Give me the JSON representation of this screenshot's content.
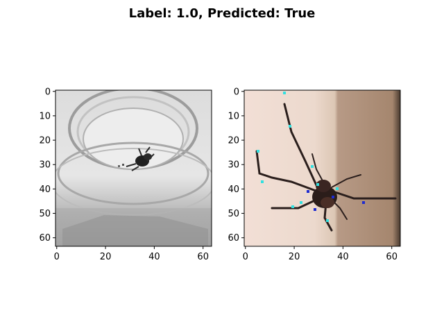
{
  "figure": {
    "title": "Label: 1.0, Predicted: True"
  },
  "chart_data": [
    {
      "type": "image",
      "image_size": [
        64,
        64
      ],
      "xlim": [
        -0.5,
        63.5
      ],
      "ylim": [
        63.5,
        -0.5
      ],
      "xticks": [
        0,
        20,
        40,
        60
      ],
      "yticks": [
        0,
        10,
        20,
        30,
        40,
        50,
        60
      ],
      "content": "grayscale photo of a small dark insect inside a glass container",
      "grid": false
    },
    {
      "type": "image",
      "image_size": [
        64,
        64
      ],
      "xlim": [
        -0.5,
        63.5
      ],
      "ylim": [
        63.5,
        -0.5
      ],
      "xticks": [
        0,
        20,
        40,
        60
      ],
      "yticks": [
        0,
        10,
        20,
        30,
        40,
        50,
        60
      ],
      "content": "color photo of a dark spider with long legs on a beige and brown wall",
      "grid": false
    }
  ]
}
